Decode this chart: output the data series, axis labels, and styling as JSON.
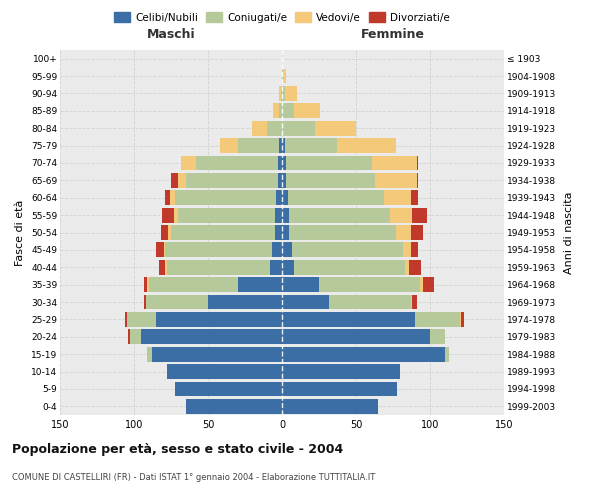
{
  "age_groups": [
    "0-4",
    "5-9",
    "10-14",
    "15-19",
    "20-24",
    "25-29",
    "30-34",
    "35-39",
    "40-44",
    "45-49",
    "50-54",
    "55-59",
    "60-64",
    "65-69",
    "70-74",
    "75-79",
    "80-84",
    "85-89",
    "90-94",
    "95-99",
    "100+"
  ],
  "birth_years": [
    "1999-2003",
    "1994-1998",
    "1989-1993",
    "1984-1988",
    "1979-1983",
    "1974-1978",
    "1969-1973",
    "1964-1968",
    "1959-1963",
    "1954-1958",
    "1949-1953",
    "1944-1948",
    "1939-1943",
    "1934-1938",
    "1929-1933",
    "1924-1928",
    "1919-1923",
    "1914-1918",
    "1909-1913",
    "1904-1908",
    "≤ 1903"
  ],
  "males": {
    "celibinubili": [
      65,
      72,
      78,
      88,
      95,
      85,
      50,
      30,
      8,
      7,
      5,
      5,
      4,
      3,
      3,
      2,
      0,
      0,
      0,
      0,
      0
    ],
    "coniugati": [
      0,
      0,
      0,
      3,
      8,
      20,
      42,
      60,
      70,
      72,
      70,
      65,
      68,
      62,
      55,
      28,
      10,
      2,
      1,
      0,
      0
    ],
    "vedovi": [
      0,
      0,
      0,
      0,
      0,
      0,
      0,
      1,
      1,
      1,
      2,
      3,
      4,
      5,
      10,
      12,
      10,
      4,
      1,
      0,
      0
    ],
    "divorziati": [
      0,
      0,
      0,
      0,
      1,
      1,
      1,
      2,
      4,
      5,
      5,
      8,
      3,
      5,
      0,
      0,
      0,
      0,
      0,
      0,
      0
    ]
  },
  "females": {
    "celibenubili": [
      65,
      78,
      80,
      110,
      100,
      90,
      32,
      25,
      8,
      7,
      5,
      5,
      4,
      3,
      3,
      2,
      0,
      0,
      0,
      0,
      0
    ],
    "coniugate": [
      0,
      0,
      0,
      3,
      10,
      30,
      55,
      68,
      75,
      75,
      72,
      68,
      65,
      60,
      58,
      35,
      22,
      8,
      2,
      1,
      0
    ],
    "vedove": [
      0,
      0,
      0,
      0,
      0,
      1,
      1,
      2,
      3,
      5,
      10,
      15,
      18,
      28,
      30,
      40,
      28,
      18,
      8,
      2,
      0
    ],
    "divorziate": [
      0,
      0,
      0,
      0,
      0,
      2,
      3,
      8,
      8,
      5,
      8,
      10,
      5,
      1,
      1,
      0,
      0,
      0,
      0,
      0,
      0
    ]
  },
  "colors": {
    "celibinubili": "#3a6ea5",
    "coniugati": "#b5c99a",
    "vedovi": "#f5c97a",
    "divorziati": "#c0392b"
  },
  "title": "Popolazione per età, sesso e stato civile - 2004",
  "subtitle": "COMUNE DI CASTELLIRI (FR) - Dati ISTAT 1° gennaio 2004 - Elaborazione TUTTITALIA.IT",
  "ylabel_left": "Fasce di età",
  "ylabel_right": "Anni di nascita",
  "xlabel_left": "Maschi",
  "xlabel_right": "Femmine",
  "xlim": 150,
  "background_color": "#ffffff",
  "grid_color": "#cccccc",
  "legend_labels": [
    "Celibi/Nubili",
    "Coniugati/e",
    "Vedovi/e",
    "Divorziati/e"
  ]
}
